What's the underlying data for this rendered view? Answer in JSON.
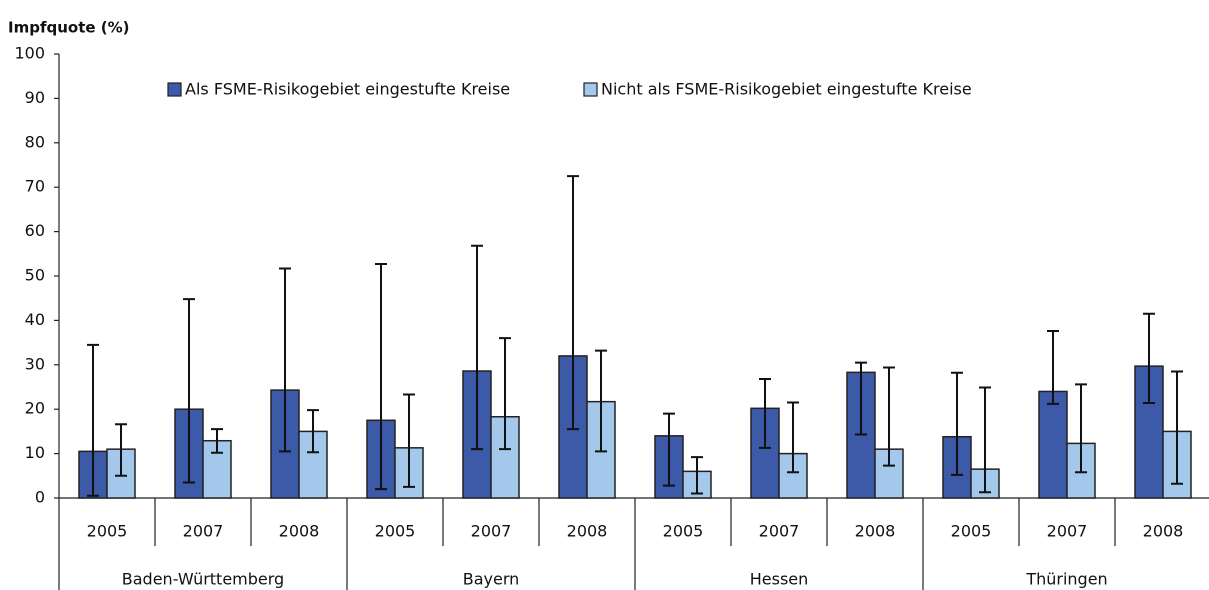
{
  "chart_data": {
    "type": "bar",
    "y_label": "Impfquote (%)",
    "groups": [
      {
        "label": "Baden-Württemberg",
        "categories": [
          "2005",
          "2007",
          "2008"
        ]
      },
      {
        "label": "Bayern",
        "categories": [
          "2005",
          "2007",
          "2008"
        ]
      },
      {
        "label": "Hessen",
        "categories": [
          "2005",
          "2007",
          "2008"
        ]
      },
      {
        "label": "Thüringen",
        "categories": [
          "2005",
          "2007",
          "2008"
        ]
      }
    ],
    "series": [
      {
        "name": "Als FSME-Risikogebiet eingestufte Kreise",
        "color": "#3d5aa8",
        "values": [
          10.5,
          20,
          24.3,
          17.5,
          28.6,
          32,
          14,
          20.2,
          28.3,
          13.8,
          24,
          29.7
        ],
        "low": [
          0.5,
          3.5,
          10.5,
          2,
          11,
          15.5,
          2.8,
          11.3,
          14.3,
          5.2,
          21.2,
          21.4
        ],
        "high": [
          34.5,
          44.8,
          51.7,
          52.7,
          56.8,
          72.5,
          19,
          26.8,
          30.5,
          28.2,
          37.6,
          41.5
        ]
      },
      {
        "name": "Nicht als FSME-Risikogebiet eingestufte Kreise",
        "color": "#a4c8ec",
        "values": [
          11,
          12.9,
          15,
          11.3,
          18.3,
          21.7,
          6,
          10,
          11,
          6.5,
          12.3,
          15
        ],
        "low": [
          5,
          10.2,
          10.3,
          2.5,
          11,
          10.5,
          1,
          5.8,
          7.3,
          1.3,
          5.8,
          3.2
        ],
        "high": [
          16.6,
          15.5,
          19.8,
          23.3,
          36,
          33.2,
          9.2,
          21.5,
          29.4,
          24.9,
          25.6,
          28.5
        ]
      }
    ],
    "ylim": [
      0,
      100
    ],
    "yticks": [
      0,
      10,
      20,
      30,
      40,
      50,
      60,
      70,
      80,
      90,
      100
    ],
    "legend": "top"
  }
}
